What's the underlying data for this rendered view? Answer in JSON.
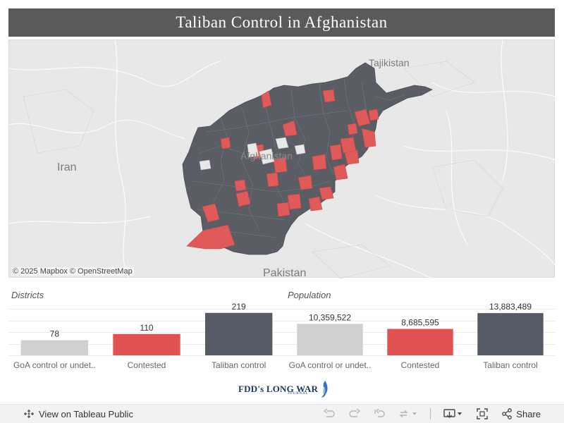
{
  "title": "Taliban Control in Afghanistan",
  "map": {
    "labels": {
      "iran": "Iran",
      "tajikistan": "Tajikistan",
      "pakistan": "Pakistan",
      "afghanistan": "Afghanistan"
    },
    "attribution": "© 2025 Mapbox  © OpenStreetMap",
    "colors": {
      "taliban": "#5a5d64",
      "contested": "#e05a5a",
      "background": "#e8e8e8",
      "border": "#ffffff"
    }
  },
  "districts": {
    "panel_title": "Districts",
    "chart_data": {
      "type": "bar",
      "categories": [
        "GoA control or undet..",
        "Contested",
        "Taliban control"
      ],
      "values": [
        78,
        110,
        219
      ],
      "value_labels": [
        "78",
        "110",
        "219"
      ],
      "colors": [
        "#d0d0d0",
        "#e05252",
        "#575b63"
      ],
      "ylim": [
        0,
        240
      ]
    }
  },
  "population": {
    "panel_title": "Population",
    "chart_data": {
      "type": "bar",
      "categories": [
        "GoA control or undet..",
        "Contested",
        "Taliban control"
      ],
      "values": [
        10359522,
        8685595,
        13883489
      ],
      "value_labels": [
        "10,359,522",
        "8,685,595",
        "13,883,489"
      ],
      "colors": [
        "#d0d0d0",
        "#e05252",
        "#575b63"
      ],
      "ylim": [
        0,
        15300000
      ]
    }
  },
  "logo": {
    "text": "FDD's LONG WAR",
    "sub": "JOURNAL"
  },
  "toolbar": {
    "view_label": "View on Tableau Public",
    "share_label": "Share",
    "icons": [
      "undo-icon",
      "redo-icon",
      "revert-icon",
      "refresh-icon",
      "dropdown-icon",
      "download-icon",
      "fullscreen-icon",
      "share-icon"
    ]
  }
}
